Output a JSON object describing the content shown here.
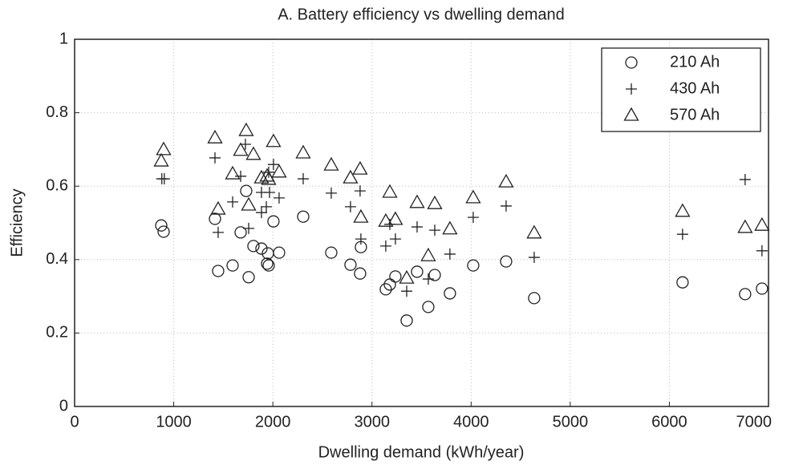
{
  "chart_data": {
    "type": "scatter",
    "title": "A. Battery efficiency vs dwelling demand",
    "xlabel": "Dwelling demand (kWh/year)",
    "ylabel": "Efficiency",
    "xlim": [
      0,
      7000
    ],
    "xticks": [
      0,
      1000,
      2000,
      3000,
      4000,
      5000,
      6000,
      7000
    ],
    "ylim": [
      0,
      1
    ],
    "yticks": [
      0,
      0.2,
      0.4,
      0.6,
      0.8,
      1
    ],
    "grid": true,
    "legend": "upper right",
    "series": [
      {
        "name": "210 Ah",
        "marker": "circle",
        "color": "#222222",
        "x": [
          874,
          898,
          1416,
          1448,
          1675,
          1731,
          1594,
          1756,
          1804,
          1885,
          1950,
          1942,
          1958,
          2006,
          2063,
          2306,
          2589,
          2783,
          2880,
          2888,
          3139,
          3180,
          3236,
          3350,
          3455,
          3568,
          3633,
          3786,
          4021,
          4353,
          4636,
          6133,
          6764,
          6934
        ],
        "values": [
          0.493,
          0.476,
          0.511,
          0.369,
          0.474,
          0.587,
          0.384,
          0.352,
          0.437,
          0.43,
          0.417,
          0.389,
          0.384,
          0.504,
          0.419,
          0.517,
          0.419,
          0.386,
          0.362,
          0.434,
          0.319,
          0.332,
          0.354,
          0.234,
          0.367,
          0.271,
          0.358,
          0.308,
          0.384,
          0.395,
          0.295,
          0.338,
          0.306,
          0.321
        ]
      },
      {
        "name": "430 Ah",
        "marker": "plus",
        "color": "#222222",
        "x": [
          880,
          905,
          1416,
          1448,
          1675,
          1723,
          1756,
          1594,
          1885,
          1885,
          1934,
          1966,
          1958,
          2006,
          2063,
          2306,
          2589,
          2783,
          2880,
          2888,
          3139,
          3180,
          3236,
          3350,
          3455,
          3568,
          3633,
          3786,
          4021,
          4353,
          4636,
          6133,
          6764,
          6934
        ],
        "values": [
          0.62,
          0.62,
          0.677,
          0.474,
          0.627,
          0.714,
          0.485,
          0.557,
          0.583,
          0.528,
          0.544,
          0.583,
          0.638,
          0.659,
          0.568,
          0.62,
          0.581,
          0.544,
          0.587,
          0.456,
          0.437,
          0.496,
          0.456,
          0.314,
          0.489,
          0.347,
          0.48,
          0.415,
          0.515,
          0.546,
          0.406,
          0.469,
          0.618,
          0.424
        ]
      },
      {
        "name": "570 Ah",
        "marker": "triangle",
        "color": "#222222",
        "x": [
          874,
          898,
          1416,
          1448,
          1594,
          1675,
          1731,
          1756,
          1804,
          1885,
          1942,
          1958,
          2006,
          2063,
          2306,
          2589,
          2783,
          2880,
          2888,
          3139,
          3180,
          3236,
          3350,
          3455,
          3568,
          3633,
          3786,
          4021,
          4353,
          4636,
          6133,
          6764,
          6934
        ],
        "values": [
          0.668,
          0.699,
          0.731,
          0.537,
          0.633,
          0.697,
          0.751,
          0.548,
          0.686,
          0.622,
          0.627,
          0.618,
          0.721,
          0.638,
          0.69,
          0.657,
          0.622,
          0.646,
          0.515,
          0.504,
          0.583,
          0.509,
          0.349,
          0.555,
          0.41,
          0.552,
          0.483,
          0.568,
          0.611,
          0.472,
          0.531,
          0.487,
          0.493
        ]
      }
    ]
  }
}
